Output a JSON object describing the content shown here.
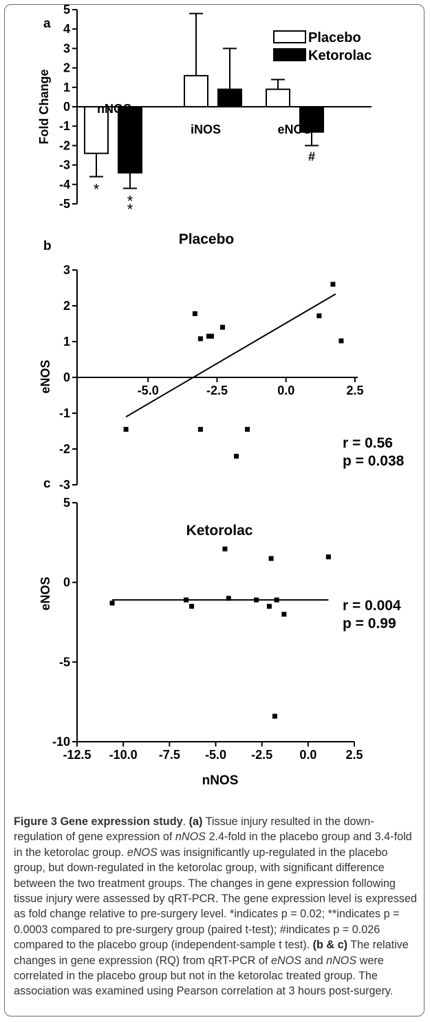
{
  "chart_data": [
    {
      "type": "bar",
      "panel_label": "a",
      "ylabel": "Fold Change",
      "ylim": [
        -5,
        5
      ],
      "yticks": [
        5,
        4,
        3,
        2,
        1,
        0,
        -1,
        -2,
        -3,
        -4,
        -5
      ],
      "categories": [
        "nNOS",
        "iNOS",
        "eNOS"
      ],
      "series": [
        {
          "name": "Placebo",
          "values": [
            -2.4,
            1.6,
            0.9
          ],
          "errors": [
            1.2,
            3.2,
            0.5
          ],
          "color": "#ffffff"
        },
        {
          "name": "Ketorolac",
          "values": [
            -3.4,
            0.9,
            -1.3
          ],
          "errors": [
            0.8,
            2.1,
            0.7
          ],
          "color": "#000000"
        }
      ],
      "annotations": [
        {
          "category": "nNOS",
          "series": "Placebo",
          "text": "*"
        },
        {
          "category": "nNOS",
          "series": "Ketorolac",
          "text": "**"
        },
        {
          "category": "eNOS",
          "series": "Ketorolac",
          "text": "#"
        }
      ],
      "legend_position": "top-right"
    },
    {
      "type": "scatter",
      "panel_label": "b",
      "title": "Placebo",
      "ylabel": "eNOS",
      "xlim": [
        -7,
        2.6
      ],
      "ylim": [
        -3,
        3
      ],
      "xticks": [
        "-5.0",
        "-2.5",
        "0.0",
        "2.5"
      ],
      "yticks": [
        "3",
        "2",
        "1",
        "0",
        "-1",
        "-2",
        "-3"
      ],
      "points": [
        {
          "x": -5.8,
          "y": -1.45
        },
        {
          "x": -3.3,
          "y": 1.78
        },
        {
          "x": -3.1,
          "y": -1.45
        },
        {
          "x": -3.1,
          "y": 1.08
        },
        {
          "x": -2.8,
          "y": 1.15
        },
        {
          "x": -2.7,
          "y": 1.15
        },
        {
          "x": -2.3,
          "y": 1.4
        },
        {
          "x": -1.4,
          "y": -1.45
        },
        {
          "x": -1.8,
          "y": -2.2
        },
        {
          "x": 1.2,
          "y": 1.72
        },
        {
          "x": 1.7,
          "y": 2.6
        },
        {
          "x": 2.0,
          "y": 1.02
        }
      ],
      "fit_line": {
        "x": [
          -5.8,
          1.8
        ],
        "y": [
          -1.1,
          2.33
        ]
      },
      "stats": {
        "r": "r = 0.56",
        "p": "p = 0.038"
      }
    },
    {
      "type": "scatter",
      "panel_label": "c",
      "title": "Ketorolac",
      "xlabel": "nNOS",
      "ylabel": "eNOS",
      "xlim": [
        -12.5,
        2.5
      ],
      "ylim": [
        -10,
        5
      ],
      "xticks": [
        "-12.5",
        "-10.0",
        "-7.5",
        "-5.0",
        "-2.5",
        "0.0",
        "2.5"
      ],
      "yticks": [
        "5",
        "0",
        "-5",
        "-10"
      ],
      "points": [
        {
          "x": -10.6,
          "y": -1.3
        },
        {
          "x": -6.6,
          "y": -1.1
        },
        {
          "x": -6.3,
          "y": -1.5
        },
        {
          "x": -4.5,
          "y": 2.1
        },
        {
          "x": -4.3,
          "y": -1.0
        },
        {
          "x": -2.8,
          "y": -1.1
        },
        {
          "x": -2.1,
          "y": -1.5
        },
        {
          "x": -2.0,
          "y": 1.5
        },
        {
          "x": -1.7,
          "y": -1.1
        },
        {
          "x": -1.3,
          "y": -2.0
        },
        {
          "x": -1.8,
          "y": -8.4
        },
        {
          "x": 1.1,
          "y": 1.6
        }
      ],
      "fit_line": {
        "x": [
          -10.6,
          1.1
        ],
        "y": [
          -1.1,
          -1.1
        ]
      },
      "stats": {
        "r": "r = 0.004",
        "p": "p = 0.99"
      }
    }
  ],
  "caption": {
    "label": "Figure 3 Gene expression study",
    "sep": ". ",
    "p1_tag": "(a)",
    "p1_t1": " Tissue injury resulted in the down-regulation of gene expression of ",
    "g_nnos": "nNOS",
    "p1_t2": " 2.4-fold in the placebo group and 3.4-fold in the ketorolac group. ",
    "g_enos": "eNOS",
    "p1_t3": " was insignificantly up-regulated in the placebo group, but down-regulated in the ketorolac group, with significant difference between the two treatment groups. The changes in gene expression following tissue injury were assessed by qRT-PCR. The gene expression level is expressed as fold change relative to pre-surgery level. *indicates p = 0.02; **indicates p = 0.0003 compared to pre-surgery group (paired t-test); #indicates p = 0.026 compared to the placebo group (independent-sample t test). ",
    "p2_tag": "(b & c)",
    "p2_t1": " The relative changes in gene expression (RQ) from qRT-PCR of ",
    "g_enos2": "eNOS",
    "p2_and": " and ",
    "g_nnos2": "nNOS",
    "p2_t2": " were correlated in the placebo group but not in the ketorolac treated group. The association was examined using Pearson correlation at 3 hours post-surgery."
  }
}
